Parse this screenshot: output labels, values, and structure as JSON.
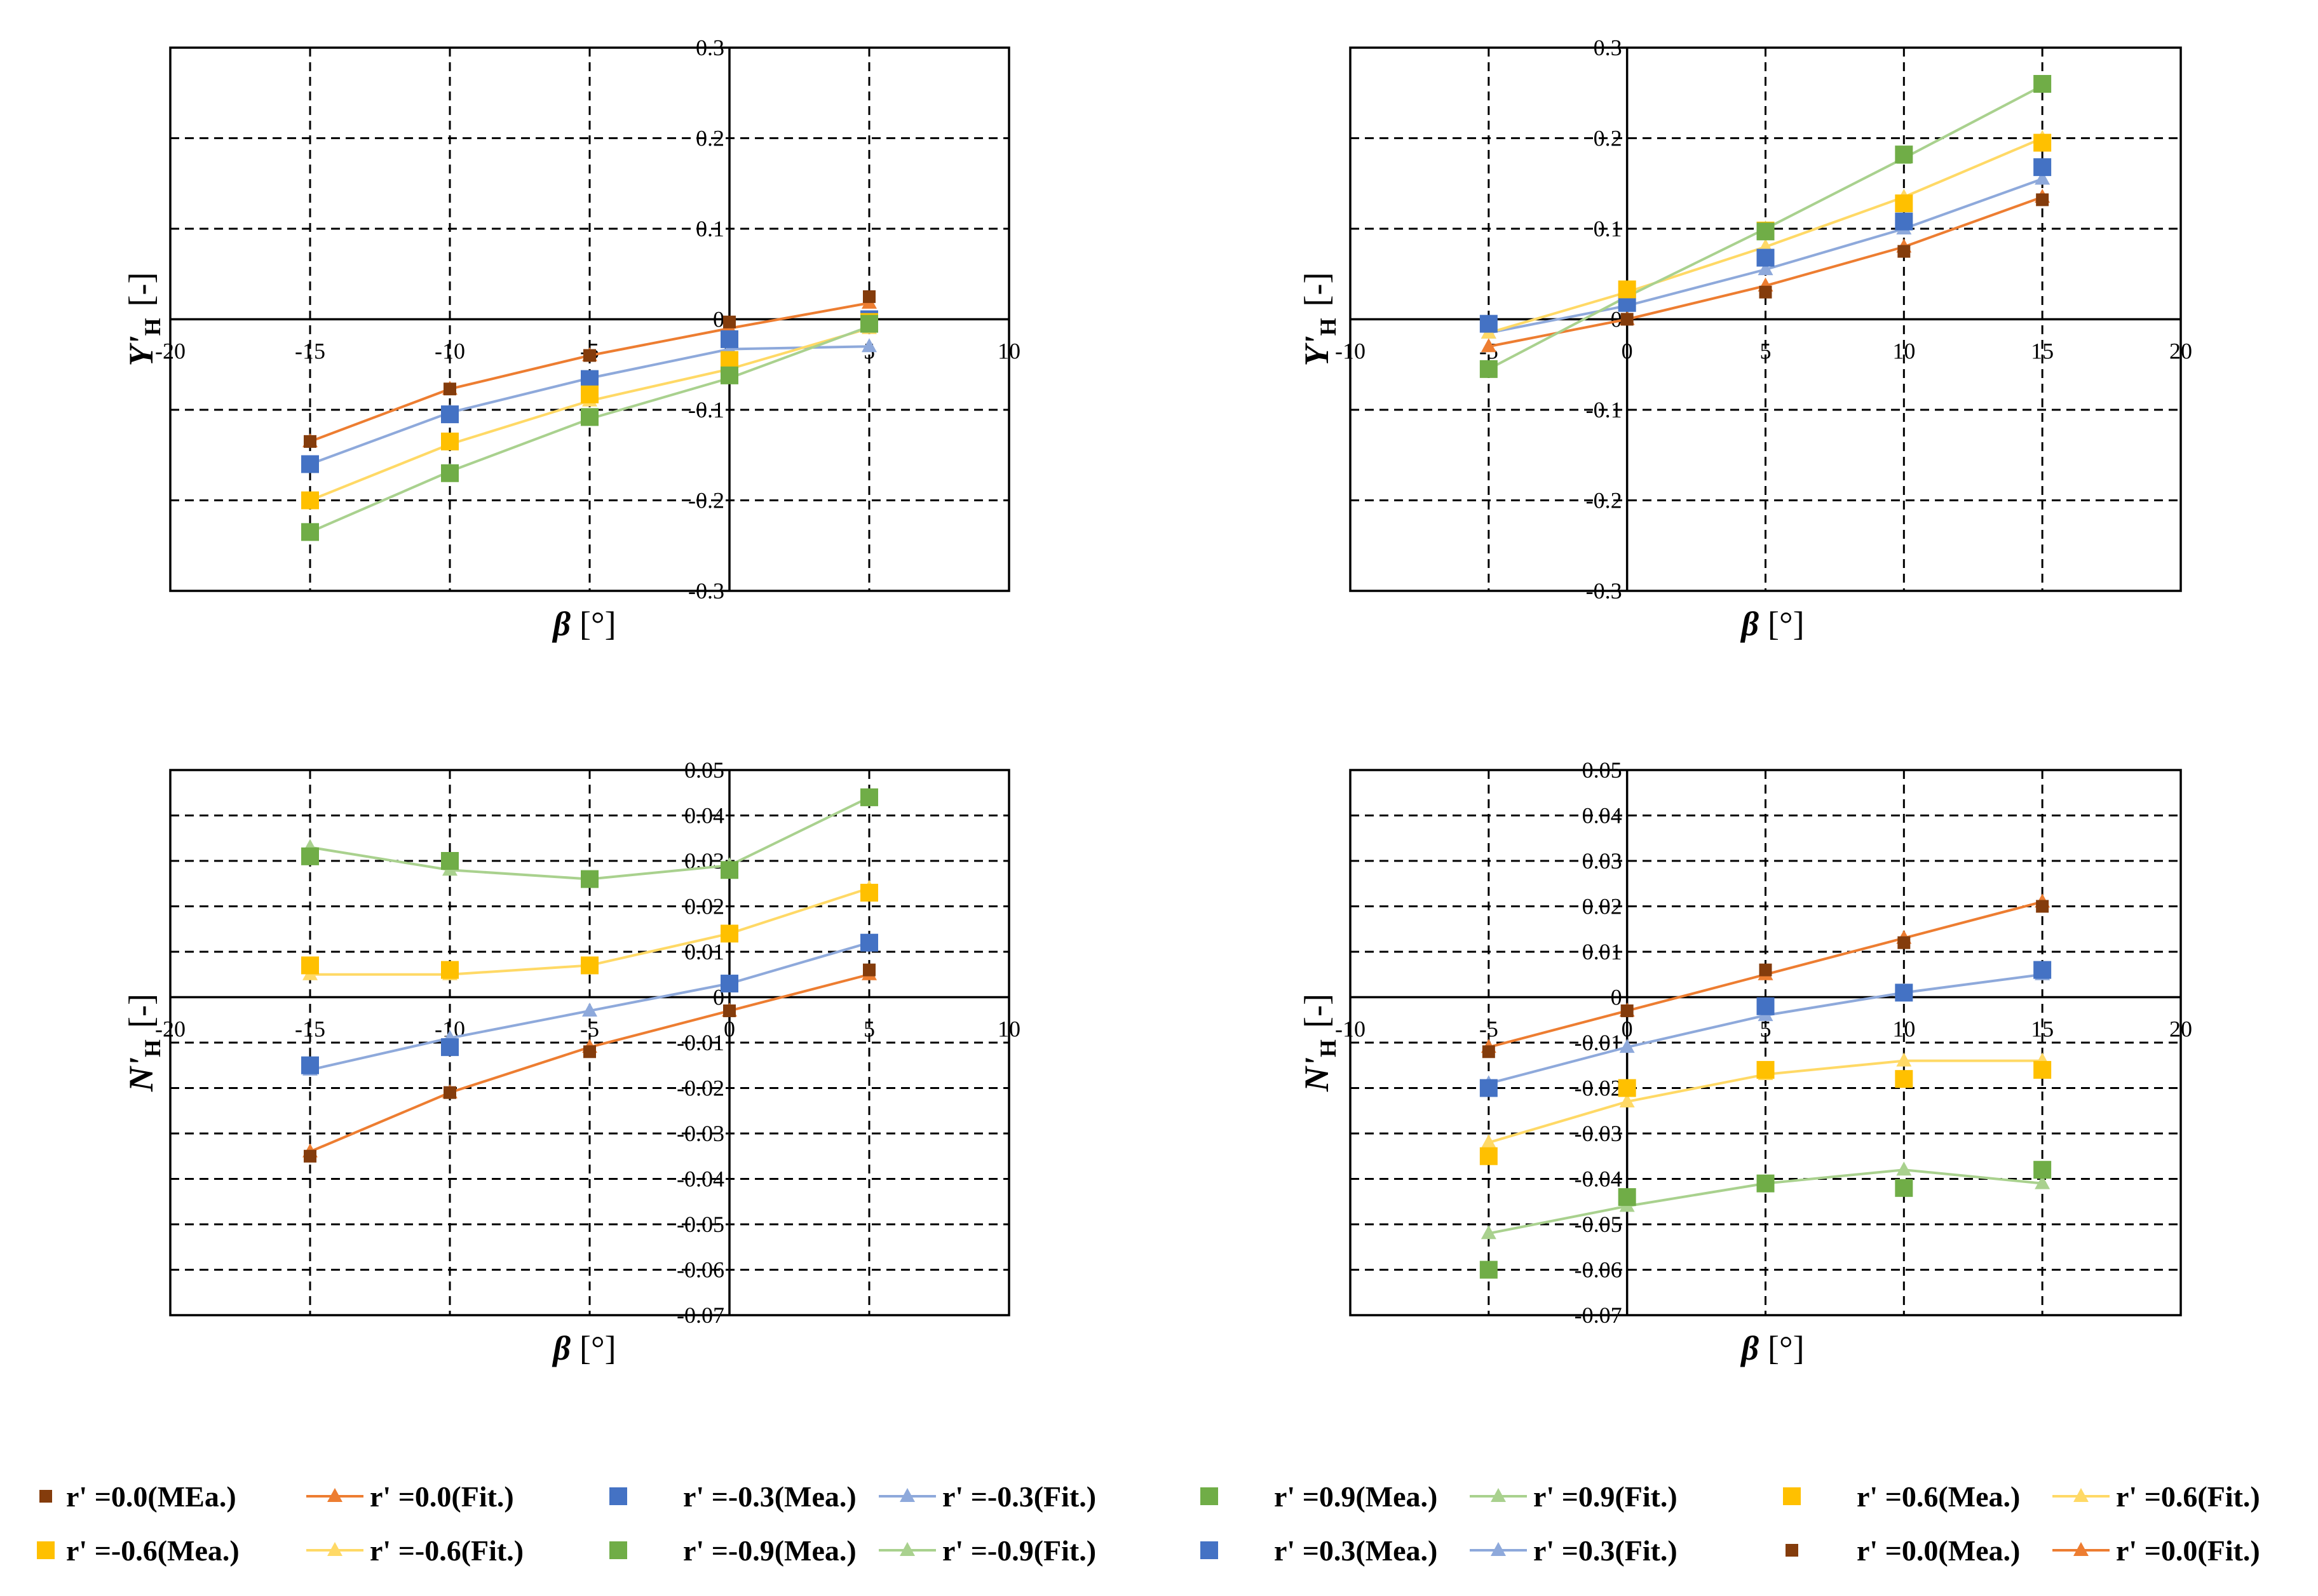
{
  "colors": {
    "brown": "#843C0C",
    "orange": "#ED7D31",
    "blue": "#4472C4",
    "lightblue": "#8EA9DB",
    "green": "#70AD47",
    "lightgreen": "#A9D18E",
    "yellow": "#FFC000",
    "lightyellow": "#FFD966"
  },
  "chart_data": [
    {
      "type": "line",
      "id": "yh-left",
      "ylabel_main": "Y'",
      "ylabel_sub": "H",
      "ylabel_tail": "[-]",
      "xlabel_symbol": "β",
      "xlabel_unit": "[°]",
      "xlim": [
        -20,
        10
      ],
      "ylim": [
        -0.3,
        0.3
      ],
      "x_ticks": [
        -20,
        -15,
        -10,
        -5,
        0,
        5,
        10
      ],
      "y_ticks": [
        -0.3,
        -0.2,
        -0.1,
        0,
        0.1,
        0.2,
        0.3
      ],
      "x_tick_labels": [
        "-20",
        "-15",
        "-10",
        "-5",
        "0",
        "5",
        "10"
      ],
      "y_tick_labels": [
        "-0.3",
        "-0.2",
        "-0.1",
        "0",
        "0.1",
        "0.2",
        "0.3"
      ],
      "series": [
        {
          "name": "r' =0.0(MEa.)",
          "kind": "mea",
          "color": "brown",
          "x": [
            -15,
            -10,
            -5,
            0,
            5
          ],
          "y": [
            -0.135,
            -0.077,
            -0.04,
            -0.003,
            0.025
          ]
        },
        {
          "name": "r' =0.0(Fit.)",
          "kind": "fit",
          "color": "orange",
          "x": [
            -15,
            -10,
            -5,
            0,
            5
          ],
          "y": [
            -0.135,
            -0.077,
            -0.04,
            -0.01,
            0.018
          ]
        },
        {
          "name": "r' =-0.3(Mea.)",
          "kind": "mea",
          "color": "blue",
          "x": [
            -15,
            -10,
            -5,
            0,
            5
          ],
          "y": [
            -0.16,
            -0.105,
            -0.066,
            -0.022,
            0.0
          ]
        },
        {
          "name": "r' =-0.3(Fit.)",
          "kind": "fit",
          "color": "lightblue",
          "x": [
            -15,
            -10,
            -5,
            0,
            5
          ],
          "y": [
            -0.16,
            -0.103,
            -0.065,
            -0.033,
            -0.03
          ]
        },
        {
          "name": "r' =-0.6(Mea.)",
          "kind": "mea",
          "color": "yellow",
          "x": [
            -15,
            -10,
            -5,
            0,
            5
          ],
          "y": [
            -0.2,
            -0.135,
            -0.083,
            -0.045,
            -0.003
          ]
        },
        {
          "name": "r' =-0.6(Fit.)",
          "kind": "fit",
          "color": "lightyellow",
          "x": [
            -15,
            -10,
            -5,
            0,
            5
          ],
          "y": [
            -0.2,
            -0.138,
            -0.09,
            -0.055,
            -0.01
          ]
        },
        {
          "name": "r' =-0.9(Mea.)",
          "kind": "mea",
          "color": "green",
          "x": [
            -15,
            -10,
            -5,
            0,
            5
          ],
          "y": [
            -0.235,
            -0.17,
            -0.108,
            -0.062,
            -0.005
          ]
        },
        {
          "name": "r' =-0.9(Fit.)",
          "kind": "fit",
          "color": "lightgreen",
          "x": [
            -15,
            -10,
            -5,
            0,
            5
          ],
          "y": [
            -0.235,
            -0.168,
            -0.11,
            -0.065,
            -0.008
          ]
        }
      ]
    },
    {
      "type": "line",
      "id": "yh-right",
      "ylabel_main": "Y'",
      "ylabel_sub": "H",
      "ylabel_tail": "[-]",
      "xlabel_symbol": "β",
      "xlabel_unit": "[°]",
      "xlim": [
        -10,
        20
      ],
      "ylim": [
        -0.3,
        0.3
      ],
      "x_ticks": [
        -10,
        -5,
        0,
        5,
        10,
        15,
        20
      ],
      "y_ticks": [
        -0.3,
        -0.2,
        -0.1,
        0,
        0.1,
        0.2,
        0.3
      ],
      "x_tick_labels": [
        "-10",
        "-5",
        "0",
        "5",
        "10",
        "15",
        "20"
      ],
      "y_tick_labels": [
        "-0.3",
        "-0.2",
        "-0.1",
        "0",
        "0.1",
        "0.2",
        "0.3"
      ],
      "series": [
        {
          "name": "r' =0.0(Mea.)",
          "kind": "mea",
          "color": "brown",
          "x": [
            0,
            5,
            10,
            15
          ],
          "y": [
            0.0,
            0.03,
            0.075,
            0.132
          ]
        },
        {
          "name": "r' =0.0(Fit.)",
          "kind": "fit",
          "color": "orange",
          "x": [
            -5,
            0,
            5,
            10,
            15
          ],
          "y": [
            -0.03,
            0.0,
            0.037,
            0.08,
            0.135
          ]
        },
        {
          "name": "r' =0.3(Mea.)",
          "kind": "mea",
          "color": "blue",
          "x": [
            -5,
            0,
            5,
            10,
            15
          ],
          "y": [
            -0.005,
            0.018,
            0.068,
            0.108,
            0.168
          ]
        },
        {
          "name": "r' =0.3(Fit.)",
          "kind": "fit",
          "color": "lightblue",
          "x": [
            -5,
            0,
            5,
            10,
            15
          ],
          "y": [
            -0.015,
            0.015,
            0.055,
            0.1,
            0.155
          ]
        },
        {
          "name": "r' =0.6(Mea.)",
          "kind": "mea",
          "color": "yellow",
          "x": [
            0,
            5,
            10,
            15
          ],
          "y": [
            0.033,
            0.098,
            0.128,
            0.195
          ]
        },
        {
          "name": "r' =0.6(Fit.)",
          "kind": "fit",
          "color": "lightyellow",
          "x": [
            -5,
            0,
            5,
            10,
            15
          ],
          "y": [
            -0.015,
            0.03,
            0.08,
            0.135,
            0.2
          ]
        },
        {
          "name": "r' =0.9(Mea.)",
          "kind": "mea",
          "color": "green",
          "x": [
            -5,
            5,
            10,
            15
          ],
          "y": [
            -0.055,
            0.097,
            0.182,
            0.26
          ]
        },
        {
          "name": "r' =0.9(Fit.)",
          "kind": "fit",
          "color": "lightgreen",
          "x": [
            -5,
            0,
            5,
            10,
            15
          ],
          "y": [
            -0.055,
            0.025,
            0.1,
            0.178,
            0.258
          ]
        }
      ]
    },
    {
      "type": "line",
      "id": "nh-left",
      "ylabel_main": "N'",
      "ylabel_sub": "H",
      "ylabel_tail": "[-]",
      "xlabel_symbol": "β",
      "xlabel_unit": "[°]",
      "xlim": [
        -20,
        10
      ],
      "ylim": [
        -0.07,
        0.05
      ],
      "x_ticks": [
        -20,
        -15,
        -10,
        -5,
        0,
        5,
        10
      ],
      "y_ticks": [
        -0.07,
        -0.06,
        -0.05,
        -0.04,
        -0.03,
        -0.02,
        -0.01,
        0,
        0.01,
        0.02,
        0.03,
        0.04,
        0.05
      ],
      "x_tick_labels": [
        "-20",
        "-15",
        "-10",
        "-5",
        "0",
        "5",
        "10"
      ],
      "y_tick_labels": [
        "-0.07",
        "-0.06",
        "-0.05",
        "-0.04",
        "-0.03",
        "-0.02",
        "-0.01",
        "0",
        "0.01",
        "0.02",
        "0.03",
        "0.04",
        "0.05"
      ],
      "series": [
        {
          "name": "r' =0.0(MEa.)",
          "kind": "mea",
          "color": "brown",
          "x": [
            -15,
            -10,
            -5,
            0,
            5
          ],
          "y": [
            -0.035,
            -0.021,
            -0.012,
            -0.003,
            0.006
          ]
        },
        {
          "name": "r' =0.0(Fit.)",
          "kind": "fit",
          "color": "orange",
          "x": [
            -15,
            -10,
            -5,
            0,
            5
          ],
          "y": [
            -0.034,
            -0.021,
            -0.011,
            -0.003,
            0.005
          ]
        },
        {
          "name": "r' =-0.3(Mea.)",
          "kind": "mea",
          "color": "blue",
          "x": [
            -15,
            -10,
            0,
            5
          ],
          "y": [
            -0.015,
            -0.011,
            0.003,
            0.012
          ]
        },
        {
          "name": "r' =-0.3(Fit.)",
          "kind": "fit",
          "color": "lightblue",
          "x": [
            -15,
            -10,
            -5,
            0,
            5
          ],
          "y": [
            -0.016,
            -0.009,
            -0.003,
            0.003,
            0.012
          ]
        },
        {
          "name": "r' =-0.6(Mea.)",
          "kind": "mea",
          "color": "yellow",
          "x": [
            -15,
            -10,
            -5,
            0,
            5
          ],
          "y": [
            0.007,
            0.006,
            0.007,
            0.014,
            0.023
          ]
        },
        {
          "name": "r' =-0.6(Fit.)",
          "kind": "fit",
          "color": "lightyellow",
          "x": [
            -15,
            -10,
            -5,
            0,
            5
          ],
          "y": [
            0.005,
            0.005,
            0.007,
            0.014,
            0.024
          ]
        },
        {
          "name": "r' =-0.9(Mea.)",
          "kind": "mea",
          "color": "green",
          "x": [
            -15,
            -10,
            -5,
            0,
            5
          ],
          "y": [
            0.031,
            0.03,
            0.026,
            0.028,
            0.044
          ]
        },
        {
          "name": "r' =-0.9(Fit.)",
          "kind": "fit",
          "color": "lightgreen",
          "x": [
            -15,
            -10,
            -5,
            0,
            5
          ],
          "y": [
            0.033,
            0.028,
            0.026,
            0.029,
            0.044
          ]
        }
      ]
    },
    {
      "type": "line",
      "id": "nh-right",
      "ylabel_main": "N'",
      "ylabel_sub": "H",
      "ylabel_tail": "[-]",
      "xlabel_symbol": "β",
      "xlabel_unit": "[°]",
      "xlim": [
        -10,
        20
      ],
      "ylim": [
        -0.07,
        0.05
      ],
      "x_ticks": [
        -10,
        -5,
        0,
        5,
        10,
        15,
        20
      ],
      "y_ticks": [
        -0.07,
        -0.06,
        -0.05,
        -0.04,
        -0.03,
        -0.02,
        -0.01,
        0,
        0.01,
        0.02,
        0.03,
        0.04,
        0.05
      ],
      "x_tick_labels": [
        "-10",
        "-5",
        "0",
        "5",
        "10",
        "15",
        "20"
      ],
      "y_tick_labels": [
        "-0.07",
        "-0.06",
        "-0.05",
        "-0.04",
        "-0.03",
        "-0.02",
        "-0.01",
        "0",
        "0.01",
        "0.02",
        "0.03",
        "0.04",
        "0.05"
      ],
      "series": [
        {
          "name": "r' =0.0(Mea.)",
          "kind": "mea",
          "color": "brown",
          "x": [
            -5,
            0,
            5,
            10,
            15
          ],
          "y": [
            -0.012,
            -0.003,
            0.006,
            0.012,
            0.02
          ]
        },
        {
          "name": "r' =0.0(Fit.)",
          "kind": "fit",
          "color": "orange",
          "x": [
            -5,
            0,
            5,
            10,
            15
          ],
          "y": [
            -0.011,
            -0.003,
            0.005,
            0.013,
            0.021
          ]
        },
        {
          "name": "r' =0.3(Mea.)",
          "kind": "mea",
          "color": "blue",
          "x": [
            -5,
            5,
            10,
            15
          ],
          "y": [
            -0.02,
            -0.002,
            0.001,
            0.006
          ]
        },
        {
          "name": "r' =0.3(Fit.)",
          "kind": "fit",
          "color": "lightblue",
          "x": [
            -5,
            0,
            5,
            10,
            15
          ],
          "y": [
            -0.019,
            -0.011,
            -0.004,
            0.001,
            0.005
          ]
        },
        {
          "name": "r' =0.6(Mea.)",
          "kind": "mea",
          "color": "yellow",
          "x": [
            -5,
            0,
            5,
            10,
            15
          ],
          "y": [
            -0.035,
            -0.02,
            -0.016,
            -0.018,
            -0.016
          ]
        },
        {
          "name": "r' =0.6(Fit.)",
          "kind": "fit",
          "color": "lightyellow",
          "x": [
            -5,
            0,
            5,
            10,
            15
          ],
          "y": [
            -0.032,
            -0.023,
            -0.017,
            -0.014,
            -0.014
          ]
        },
        {
          "name": "r' =0.9(Mea.)",
          "kind": "mea",
          "color": "green",
          "x": [
            -5,
            0,
            5,
            10,
            15
          ],
          "y": [
            -0.06,
            -0.044,
            -0.041,
            -0.042,
            -0.038
          ]
        },
        {
          "name": "r' =0.9(Fit.)",
          "kind": "fit",
          "color": "lightgreen",
          "x": [
            -5,
            0,
            5,
            10,
            15
          ],
          "y": [
            -0.052,
            -0.046,
            -0.041,
            -0.038,
            -0.041
          ]
        }
      ]
    }
  ],
  "legend": {
    "rows": [
      [
        {
          "label": "r' =0.0(MEa.)",
          "kind": "mea",
          "color": "brown"
        },
        {
          "label": "r' =0.0(Fit.)",
          "kind": "fit",
          "color": "orange"
        },
        {
          "label": "r' =-0.3(Mea.)",
          "kind": "mea",
          "color": "blue"
        },
        {
          "label": "r' =-0.3(Fit.)",
          "kind": "fit",
          "color": "lightblue"
        },
        {
          "label": "r' =0.9(Mea.)",
          "kind": "mea",
          "color": "green"
        },
        {
          "label": "r' =0.9(Fit.)",
          "kind": "fit",
          "color": "lightgreen"
        },
        {
          "label": "r' =0.6(Mea.)",
          "kind": "mea",
          "color": "yellow"
        },
        {
          "label": "r' =0.6(Fit.)",
          "kind": "fit",
          "color": "lightyellow"
        }
      ],
      [
        {
          "label": "r' =-0.6(Mea.)",
          "kind": "mea",
          "color": "yellow"
        },
        {
          "label": "r' =-0.6(Fit.)",
          "kind": "fit",
          "color": "lightyellow"
        },
        {
          "label": "r' =-0.9(Mea.)",
          "kind": "mea",
          "color": "green"
        },
        {
          "label": "r' =-0.9(Fit.)",
          "kind": "fit",
          "color": "lightgreen"
        },
        {
          "label": "r' =0.3(Mea.)",
          "kind": "mea",
          "color": "blue"
        },
        {
          "label": "r' =0.3(Fit.)",
          "kind": "fit",
          "color": "lightblue"
        },
        {
          "label": "r' =0.0(Mea.)",
          "kind": "mea",
          "color": "brown"
        },
        {
          "label": "r' =0.0(Fit.)",
          "kind": "fit",
          "color": "orange"
        }
      ]
    ]
  }
}
